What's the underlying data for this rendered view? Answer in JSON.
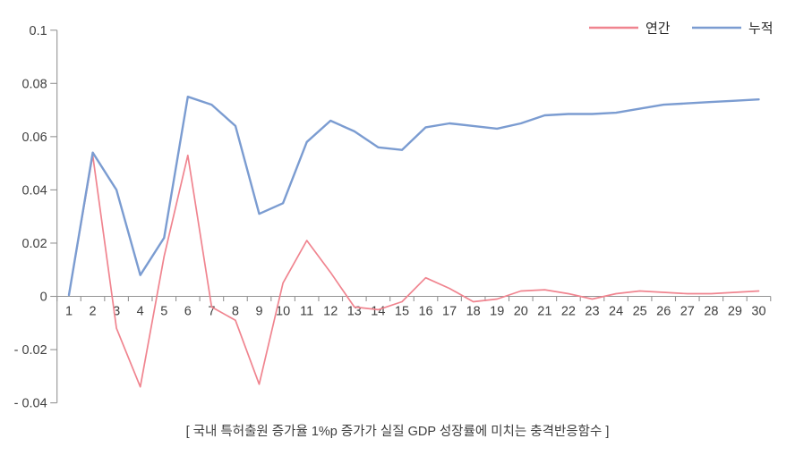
{
  "chart_data": {
    "type": "line",
    "title": "",
    "caption": "[ 국내 특허출원 증가율 1%p 증가가 실질 GDP 성장률에 미치는 충격반응함수 ]",
    "x": [
      1,
      2,
      3,
      4,
      5,
      6,
      7,
      8,
      9,
      10,
      11,
      12,
      13,
      14,
      15,
      16,
      17,
      18,
      19,
      20,
      21,
      22,
      23,
      24,
      25,
      26,
      27,
      28,
      29,
      30
    ],
    "series": [
      {
        "name": "연간",
        "color": "#F0848F",
        "values": [
          0.0005,
          0.053,
          -0.012,
          -0.034,
          0.015,
          0.053,
          -0.004,
          -0.009,
          -0.033,
          0.005,
          0.021,
          0.009,
          -0.004,
          -0.005,
          -0.002,
          0.007,
          0.003,
          -0.002,
          -0.001,
          0.002,
          0.0025,
          0.001,
          -0.001,
          0.001,
          0.002,
          0.0015,
          0.001,
          0.001,
          0.0015,
          0.002
        ]
      },
      {
        "name": "누적",
        "color": "#7B9CD1",
        "values": [
          0.0005,
          0.054,
          0.04,
          0.008,
          0.022,
          0.075,
          0.072,
          0.064,
          0.031,
          0.035,
          0.058,
          0.066,
          0.062,
          0.056,
          0.055,
          0.0635,
          0.065,
          0.064,
          0.063,
          0.065,
          0.068,
          0.0685,
          0.0685,
          0.069,
          0.0705,
          0.072,
          0.0725,
          0.073,
          0.0735,
          0.074
        ]
      }
    ],
    "y_axis": {
      "min": -0.04,
      "max": 0.1,
      "tick_step": 0.02,
      "tick_values": [
        0.1,
        0.08,
        0.06,
        0.04,
        0.02,
        0,
        -0.02,
        -0.04
      ],
      "tick_labels": [
        "0.1",
        "0.08",
        "0.06",
        "0.04",
        "0.02",
        "0",
        "- 0.02",
        "- 0.04"
      ]
    },
    "x_axis": {
      "labels": [
        "1",
        "2",
        "3",
        "4",
        "5",
        "6",
        "7",
        "8",
        "9",
        "10",
        "11",
        "12",
        "13",
        "14",
        "15",
        "16",
        "17",
        "18",
        "19",
        "20",
        "21",
        "22",
        "23",
        "24",
        "25",
        "26",
        "27",
        "28",
        "29",
        "30"
      ]
    },
    "legend": {
      "position": "top-right"
    },
    "grid": false,
    "colors": {
      "axis": "#949494",
      "text": "#3f3f3f",
      "legend_text": "#262626"
    }
  }
}
